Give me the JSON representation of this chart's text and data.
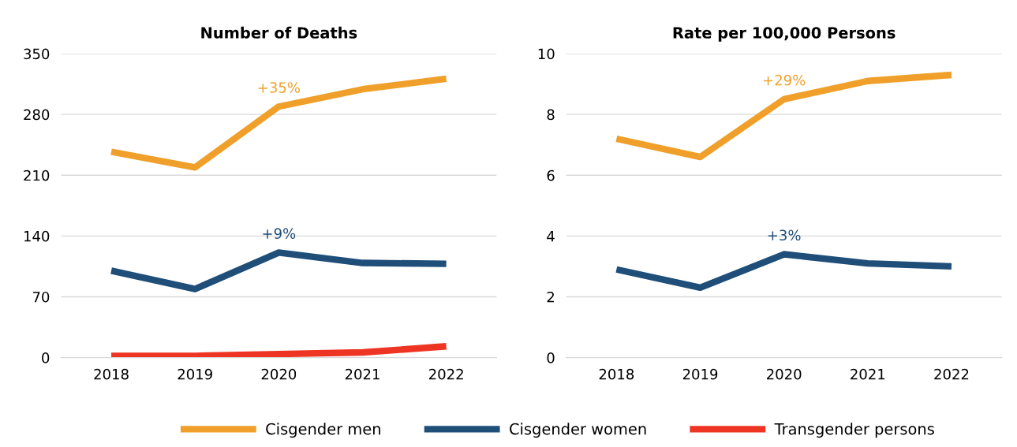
{
  "chart_data": [
    {
      "type": "line",
      "title": "Number of Deaths",
      "categories": [
        "2018",
        "2019",
        "2020",
        "2021",
        "2022"
      ],
      "ylim": [
        0,
        350
      ],
      "yticks": [
        0,
        70,
        140,
        210,
        280,
        350
      ],
      "grid": "y",
      "legend": "bottom",
      "marker": "none",
      "line_style": "solid",
      "series": [
        {
          "name": "Cisgender men",
          "color": "#f0a02a",
          "values": [
            237,
            219,
            289,
            309,
            321
          ]
        },
        {
          "name": "Cisgender women",
          "color": "#1f4e79",
          "values": [
            100,
            79,
            121,
            109,
            108
          ]
        },
        {
          "name": "Transgender persons",
          "color": "#ee3524",
          "values": [
            2,
            2,
            4,
            6,
            13
          ]
        }
      ],
      "annotations": [
        {
          "text": "+35%",
          "x": "2020",
          "y": 289
        },
        {
          "text": "+9%",
          "x": "2020",
          "y": 121
        }
      ]
    },
    {
      "type": "line",
      "title": "Rate per 100,000 Persons",
      "categories": [
        "2018",
        "2019",
        "2020",
        "2021",
        "2022"
      ],
      "ylim": [
        0,
        10
      ],
      "yticks": [
        0,
        2,
        4,
        6,
        8,
        10
      ],
      "grid": "y",
      "legend": "bottom",
      "marker": "none",
      "line_style": "solid",
      "series": [
        {
          "name": "Cisgender men",
          "color": "#f0a02a",
          "values": [
            7.2,
            6.6,
            8.5,
            9.1,
            9.3
          ]
        },
        {
          "name": "Cisgender women",
          "color": "#1f4e79",
          "values": [
            2.9,
            2.3,
            3.4,
            3.1,
            3.0
          ]
        }
      ],
      "annotations": [
        {
          "text": "+29%",
          "x": "2020",
          "y": 8.5
        },
        {
          "text": "+3%",
          "x": "2020",
          "y": 3.4
        }
      ]
    }
  ]
}
